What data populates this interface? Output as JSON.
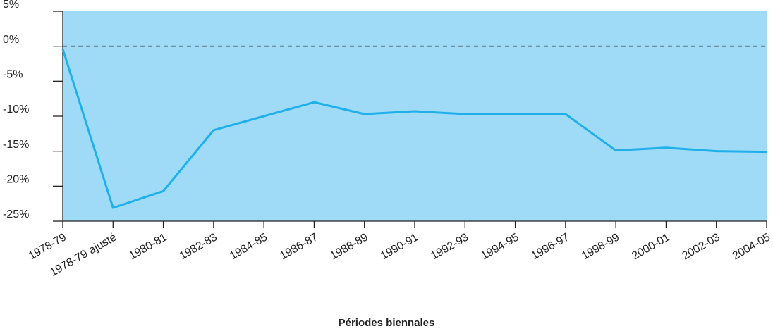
{
  "chart_data": {
    "type": "line",
    "x_label": "Périodes biennales",
    "categories": [
      "1978-79",
      "1978-79 ajusté",
      "1980-81",
      "1982-83",
      "1984-85",
      "1986-87",
      "1988-89",
      "1990-91",
      "1992-93",
      "1994-95",
      "1996-97",
      "1998-99",
      "2000-01",
      "2002-03",
      "2004-05"
    ],
    "series": [
      {
        "color": "#1fb0ea",
        "values": [
          -0.4,
          -23.1,
          -20.7,
          -12.0,
          -10.0,
          -8.0,
          -9.7,
          -9.3,
          -9.7,
          -9.7,
          -9.7,
          -14.9,
          -14.5,
          -15.0,
          -15.1
        ]
      }
    ],
    "ylim": [
      -25,
      5
    ],
    "yticks": [
      {
        "value": -25,
        "label": "-25%"
      },
      {
        "value": -20,
        "label": "-20%"
      },
      {
        "value": -15,
        "label": "-15%"
      },
      {
        "value": -10,
        "label": "-10%"
      },
      {
        "value": -5,
        "label": "-5%"
      },
      {
        "value": 0,
        "label": "0%"
      },
      {
        "value": 5,
        "label": "5%"
      }
    ],
    "reference_line": 0,
    "plot_background": "#9fdaf6"
  }
}
